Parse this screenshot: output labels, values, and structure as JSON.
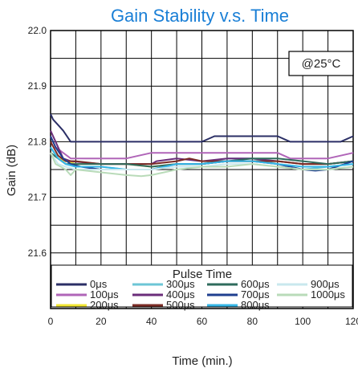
{
  "chart_data": {
    "type": "line",
    "title": "Gain Stability v.s. Time",
    "xlabel": "Time (min.)",
    "ylabel": "Gain (dB)",
    "xlim": [
      0,
      120
    ],
    "ylim": [
      21.5,
      22.0
    ],
    "x_ticks": [
      0,
      20,
      40,
      60,
      80,
      100,
      120
    ],
    "x_tick_labels": [
      "0",
      "20",
      "40",
      "60",
      "80",
      "100",
      "120"
    ],
    "y_ticks": [
      21.6,
      21.7,
      21.8,
      21.9,
      22.0
    ],
    "y_tick_labels": [
      "21.6",
      "21.7",
      "21.8",
      "21.9",
      "22.0"
    ],
    "grid": true,
    "annotation": "@25°C",
    "legend": {
      "title": "Pulse Time",
      "placement": "bottom",
      "entries": [
        "0μs",
        "100μs",
        "200μs",
        "300μs",
        "400μs",
        "500μs",
        "600μs",
        "700μs",
        "800μs",
        "900μs",
        "1000μs"
      ]
    },
    "series": [
      {
        "name": "0μs",
        "color": "#2b2f66",
        "x": [
          0,
          1,
          3,
          5,
          8,
          20,
          40,
          60,
          65,
          70,
          90,
          95,
          100,
          110,
          115,
          120
        ],
        "y": [
          21.85,
          21.84,
          21.83,
          21.82,
          21.8,
          21.8,
          21.8,
          21.8,
          21.81,
          21.81,
          21.81,
          21.8,
          21.8,
          21.8,
          21.8,
          21.81
        ]
      },
      {
        "name": "100μs",
        "color": "#b065b8",
        "x": [
          0,
          2,
          5,
          8,
          12,
          30,
          40,
          60,
          80,
          90,
          95,
          110,
          120
        ],
        "y": [
          21.81,
          21.79,
          21.78,
          21.77,
          21.77,
          21.77,
          21.78,
          21.78,
          21.78,
          21.78,
          21.77,
          21.77,
          21.78
        ]
      },
      {
        "name": "200μs",
        "color": "#f2e632",
        "x": [
          0,
          3,
          6,
          10,
          20,
          30,
          40,
          50,
          60,
          70,
          80,
          90,
          100,
          110,
          120
        ],
        "y": [
          21.78,
          21.77,
          21.765,
          21.76,
          21.76,
          21.76,
          21.755,
          21.76,
          21.76,
          21.765,
          21.765,
          21.765,
          21.76,
          21.76,
          21.765
        ]
      },
      {
        "name": "300μs",
        "color": "#6cc6d6",
        "x": [
          0,
          3,
          6,
          10,
          20,
          30,
          40,
          50,
          60,
          70,
          80,
          90,
          100,
          110,
          120
        ],
        "y": [
          21.79,
          21.77,
          21.76,
          21.755,
          21.755,
          21.75,
          21.75,
          21.76,
          21.76,
          21.77,
          21.77,
          21.76,
          21.75,
          21.755,
          21.76
        ]
      },
      {
        "name": "400μs",
        "color": "#6b2d7a",
        "x": [
          0,
          2,
          5,
          8,
          20,
          30,
          40,
          42,
          50,
          60,
          70,
          80,
          90,
          100,
          110,
          120
        ],
        "y": [
          21.82,
          21.8,
          21.77,
          21.765,
          21.76,
          21.76,
          21.76,
          21.765,
          21.77,
          21.765,
          21.77,
          21.77,
          21.765,
          21.76,
          21.76,
          21.765
        ]
      },
      {
        "name": "500μs",
        "color": "#7a2b25",
        "x": [
          0,
          3,
          6,
          10,
          20,
          30,
          40,
          50,
          55,
          60,
          70,
          80,
          90,
          100,
          110,
          120
        ],
        "y": [
          21.8,
          21.775,
          21.765,
          21.765,
          21.76,
          21.76,
          21.76,
          21.765,
          21.77,
          21.765,
          21.765,
          21.765,
          21.765,
          21.76,
          21.76,
          21.765
        ]
      },
      {
        "name": "600μs",
        "color": "#2f6b5c",
        "x": [
          0,
          3,
          6,
          10,
          20,
          30,
          40,
          50,
          60,
          70,
          80,
          90,
          100,
          110,
          120
        ],
        "y": [
          21.78,
          21.77,
          21.76,
          21.76,
          21.76,
          21.76,
          21.755,
          21.76,
          21.76,
          21.765,
          21.77,
          21.77,
          21.765,
          21.76,
          21.765
        ]
      },
      {
        "name": "700μs",
        "color": "#1f3f8f",
        "x": [
          0,
          2,
          5,
          8,
          12,
          20,
          30,
          40,
          50,
          60,
          70,
          80,
          90,
          100,
          105,
          110,
          120
        ],
        "y": [
          21.81,
          21.79,
          21.77,
          21.76,
          21.755,
          21.75,
          21.75,
          21.75,
          21.76,
          21.76,
          21.765,
          21.765,
          21.76,
          21.75,
          21.748,
          21.75,
          21.765
        ]
      },
      {
        "name": "800μs",
        "color": "#35b6e6",
        "x": [
          0,
          3,
          6,
          10,
          20,
          30,
          40,
          50,
          60,
          70,
          80,
          90,
          100,
          110,
          120
        ],
        "y": [
          21.79,
          21.77,
          21.76,
          21.755,
          21.755,
          21.75,
          21.75,
          21.76,
          21.76,
          21.765,
          21.765,
          21.76,
          21.755,
          21.755,
          21.76
        ]
      },
      {
        "name": "900μs",
        "color": "#c9e8ee",
        "x": [
          0,
          3,
          6,
          10,
          20,
          30,
          40,
          50,
          60,
          70,
          80,
          90,
          100,
          110,
          120
        ],
        "y": [
          21.78,
          21.76,
          21.755,
          21.75,
          21.75,
          21.75,
          21.75,
          21.755,
          21.755,
          21.76,
          21.76,
          21.755,
          21.75,
          21.75,
          21.755
        ]
      },
      {
        "name": "1000μs",
        "color": "#b9dbb9",
        "x": [
          0,
          2,
          4,
          6,
          8,
          10,
          20,
          30,
          36,
          40,
          45,
          50,
          60,
          70,
          80,
          90,
          100,
          110,
          120
        ],
        "y": [
          21.78,
          21.76,
          21.755,
          21.75,
          21.74,
          21.75,
          21.745,
          21.74,
          21.738,
          21.74,
          21.745,
          21.75,
          21.755,
          21.755,
          21.76,
          21.755,
          21.75,
          21.75,
          21.755
        ]
      }
    ]
  }
}
